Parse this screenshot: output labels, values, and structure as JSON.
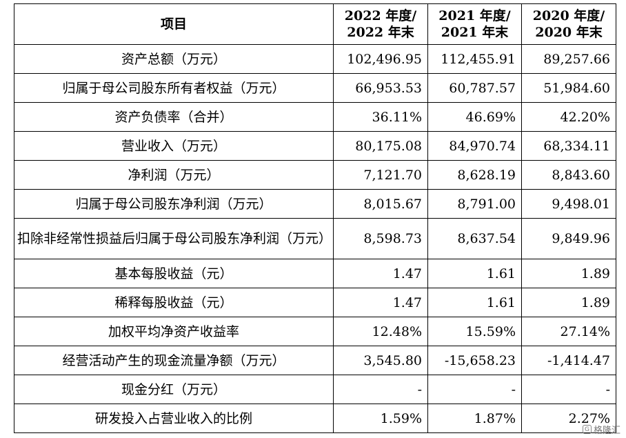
{
  "table": {
    "header": {
      "item": "项目",
      "col1": [
        "2022 年度/",
        "2022 年末"
      ],
      "col2": [
        "2021 年度/",
        "2021 年末"
      ],
      "col3": [
        "2020 年度/",
        "2020 年末"
      ]
    },
    "rows": [
      {
        "label": "资产总额（万元）",
        "v1": "102,496.95",
        "v2": "112,455.91",
        "v3": "89,257.66"
      },
      {
        "label": "归属于母公司股东所有者权益（万元）",
        "v1": "66,953.53",
        "v2": "60,787.57",
        "v3": "51,984.60"
      },
      {
        "label": "资产负债率（合并）",
        "v1": "36.11%",
        "v2": "46.69%",
        "v3": "42.20%"
      },
      {
        "label": "营业收入（万元）",
        "v1": "80,175.08",
        "v2": "84,970.74",
        "v3": "68,334.11"
      },
      {
        "label": "净利润（万元）",
        "v1": "7,121.70",
        "v2": "8,628.19",
        "v3": "8,843.60"
      },
      {
        "label": "归属于母公司股东净利润（万元）",
        "v1": "8,015.67",
        "v2": "8,791.00",
        "v3": "9,498.01"
      },
      {
        "label": "扣除非经常性损益后归属于母公司股东净利润（万元）",
        "v1": "8,598.73",
        "v2": "8,637.54",
        "v3": "9,849.96"
      },
      {
        "label": "基本每股收益（元）",
        "v1": "1.47",
        "v2": "1.61",
        "v3": "1.89"
      },
      {
        "label": "稀释每股收益（元）",
        "v1": "1.47",
        "v2": "1.61",
        "v3": "1.89"
      },
      {
        "label": "加权平均净资产收益率",
        "v1": "12.48%",
        "v2": "15.59%",
        "v3": "27.14%"
      },
      {
        "label": "经营活动产生的现金流量净额（万元）",
        "v1": "3,545.80",
        "v2": "-15,658.23",
        "v3": "-1,414.47"
      },
      {
        "label": "现金分红（万元）",
        "v1": "-",
        "v2": "-",
        "v3": "-"
      },
      {
        "label": "研发投入占营业收入的比例",
        "v1": "1.59%",
        "v2": "1.87%",
        "v3": "2.27%"
      }
    ]
  },
  "watermark": {
    "logo_text": "G",
    "text": "格隆汇"
  }
}
